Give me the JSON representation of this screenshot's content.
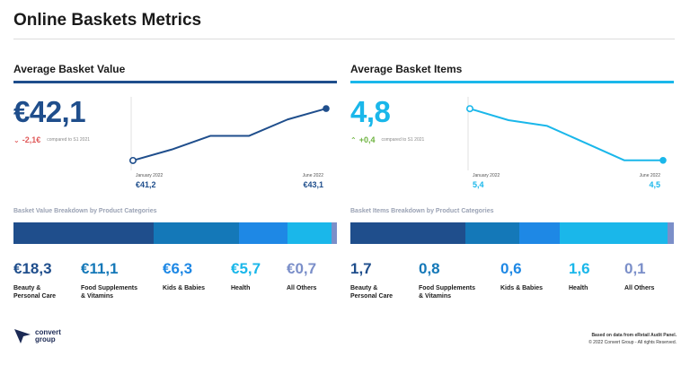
{
  "page_title": "Online Baskets Metrics",
  "colors": {
    "navy": "#1f4e8c",
    "cyan": "#1ab7ea",
    "red": "#e05a5a",
    "green": "#6db33f",
    "muted": "#9aa2b4",
    "segments": [
      "#1f4e8c",
      "#1478b8",
      "#1e88e5",
      "#1ab7ea",
      "#7b8fc9"
    ]
  },
  "value": {
    "section_title": "Average Basket Value",
    "big_value": "€42,1",
    "delta": {
      "arrow": "⌄",
      "value": "-2,1€",
      "compare_text": "compared to S1 2021"
    },
    "sparkline": {
      "start_label": "January 2022",
      "end_label": "June 2022",
      "start_value": "€41,2",
      "end_value": "€43,1"
    },
    "breakdown_title": "Basket Value Breakdown by Product Categories",
    "categories": [
      {
        "value": "€18,3",
        "label": "Beauty &\nPersonal Care"
      },
      {
        "value": "€11,1",
        "label": "Food Supplements\n& Vitamins"
      },
      {
        "value": "€6,3",
        "label": "Kids & Babies"
      },
      {
        "value": "€5,7",
        "label": "Health"
      },
      {
        "value": "€0,7",
        "label": "All Others"
      }
    ]
  },
  "items": {
    "section_title": "Average Basket Items",
    "big_value": "4,8",
    "delta": {
      "arrow": "⌃",
      "value": "+0,4",
      "compare_text": "compared to S1 2021"
    },
    "sparkline": {
      "start_label": "January 2022",
      "end_label": "June 2022",
      "start_value": "5,4",
      "end_value": "4,5"
    },
    "breakdown_title": "Basket Items Breakdown by Product Categories",
    "categories": [
      {
        "value": "1,7",
        "label": "Beauty &\nPersonal Care"
      },
      {
        "value": "0,8",
        "label": "Food Supplements\n& Vitamins"
      },
      {
        "value": "0,6",
        "label": "Kids & Babies"
      },
      {
        "value": "1,6",
        "label": "Health"
      },
      {
        "value": "0,1",
        "label": "All Others"
      }
    ]
  },
  "chart_data": [
    {
      "type": "line",
      "title": "Average Basket Value",
      "x": [
        "January 2022",
        "",
        "",
        "",
        "",
        "June 2022"
      ],
      "series": [
        {
          "values": [
            41.2,
            41.6,
            42.1,
            42.1,
            42.7,
            43.1
          ]
        }
      ],
      "ylim": [
        41.1,
        43.2
      ],
      "grid": false
    },
    {
      "type": "line",
      "title": "Average Basket Items",
      "x": [
        "January 2022",
        "",
        "",
        "",
        "",
        "June 2022"
      ],
      "series": [
        {
          "values": [
            5.4,
            5.2,
            5.1,
            4.8,
            4.5,
            4.5
          ]
        }
      ],
      "ylim": [
        4.45,
        5.45
      ],
      "grid": false
    },
    {
      "type": "bar",
      "title": "Basket Value Breakdown by Product Categories",
      "orientation": "stacked-horizontal",
      "categories": [
        "Beauty & Personal Care",
        "Food Supplements & Vitamins",
        "Kids & Babies",
        "Health",
        "All Others"
      ],
      "values": [
        18.3,
        11.1,
        6.3,
        5.7,
        0.7
      ]
    },
    {
      "type": "bar",
      "title": "Basket Items Breakdown by Product Categories",
      "orientation": "stacked-horizontal",
      "categories": [
        "Beauty & Personal Care",
        "Food Supplements & Vitamins",
        "Kids & Babies",
        "Health",
        "All Others"
      ],
      "values": [
        1.7,
        0.8,
        0.6,
        1.6,
        0.1
      ]
    }
  ],
  "logo_text": "convert\ngroup",
  "footer": {
    "source": "Based on data from eRetail Audit Panel.",
    "copyright": "© 2022 Convert Group - All rights Reserved."
  }
}
